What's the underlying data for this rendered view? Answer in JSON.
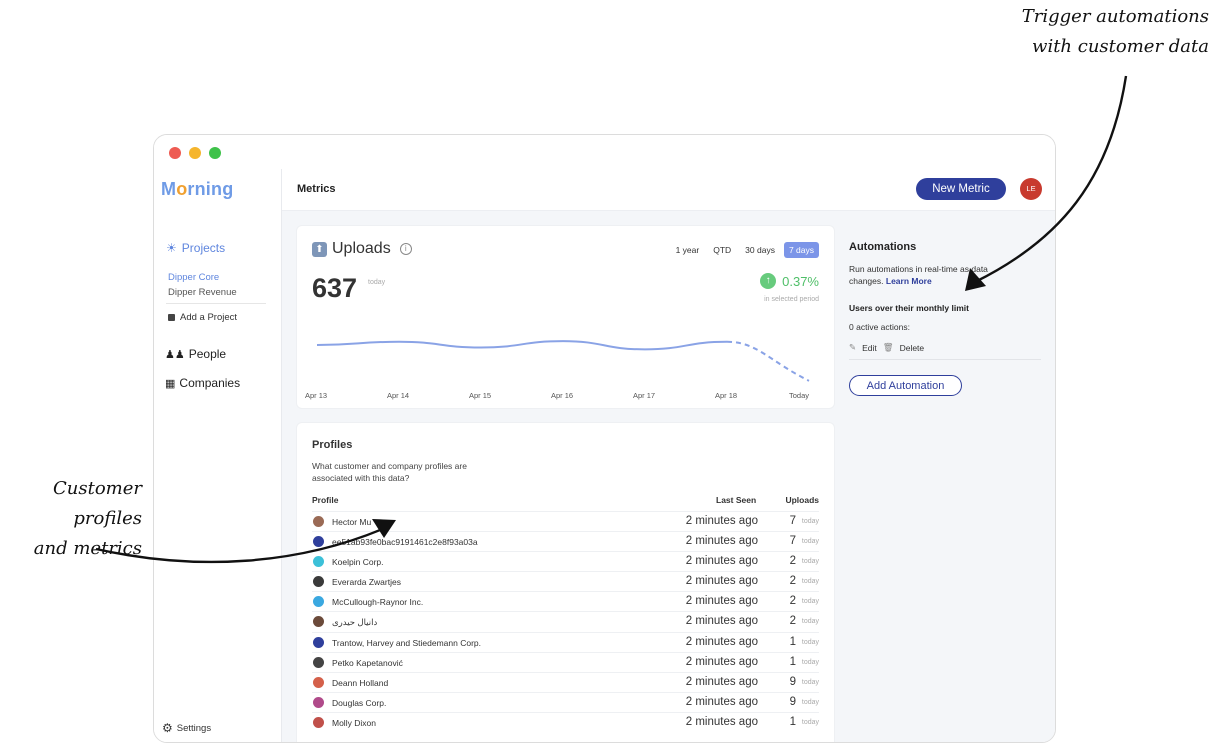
{
  "annotations": {
    "right": [
      "Trigger automations",
      "with customer data"
    ],
    "left": [
      "Customer profiles",
      "and metrics"
    ]
  },
  "app": {
    "logo": "Morning",
    "page_title": "Metrics",
    "new_metric_label": "New Metric",
    "avatar_initials": "LE"
  },
  "sidebar": {
    "projects_label": "Projects",
    "projects": [
      "Dipper Core",
      "Dipper Revenue"
    ],
    "add_project_label": "Add a Project",
    "people_label": "People",
    "companies_label": "Companies",
    "settings_label": "Settings"
  },
  "uploads": {
    "title": "Uploads",
    "ranges": [
      "1 year",
      "QTD",
      "30 days",
      "7 days"
    ],
    "active_range": "7 days",
    "value": "637",
    "value_sub": "today",
    "change": "0.37%",
    "change_sub": "in selected period"
  },
  "chart_data": {
    "type": "line",
    "x": [
      "Apr 13",
      "Apr 14",
      "Apr 15",
      "Apr 16",
      "Apr 17",
      "Apr 18",
      "Today"
    ],
    "series": [
      {
        "values": [
          0.62,
          0.67,
          0.58,
          0.68,
          0.55,
          0.67,
          0.05
        ],
        "projected_from_index": 5
      }
    ],
    "ylim": [
      0,
      1
    ],
    "grid": false,
    "colors": {
      "line": "#8aa3e6"
    }
  },
  "profiles": {
    "title": "Profiles",
    "description": "What customer and company profiles are associated with this data?",
    "columns": {
      "profile": "Profile",
      "last_seen": "Last Seen",
      "uploads": "Uploads"
    },
    "rows": [
      {
        "name": "Hector Mu",
        "last_seen": "2 minutes ago",
        "uploads": "7",
        "period": "today",
        "color": "#9a6a55"
      },
      {
        "name": "ee51ab93fe0bac9191461c2e8f93a03a",
        "last_seen": "2 minutes ago",
        "uploads": "7",
        "period": "today",
        "color": "#2f3f9c"
      },
      {
        "name": "Koelpin Corp.",
        "last_seen": "2 minutes ago",
        "uploads": "2",
        "period": "today",
        "color": "#3cc0d8"
      },
      {
        "name": "Everarda Zwartjes",
        "last_seen": "2 minutes ago",
        "uploads": "2",
        "period": "today",
        "color": "#3a3a3a"
      },
      {
        "name": "McCullough-Raynor Inc.",
        "last_seen": "2 minutes ago",
        "uploads": "2",
        "period": "today",
        "color": "#3aa8e0"
      },
      {
        "name": "دانیال حیدری",
        "last_seen": "2 minutes ago",
        "uploads": "2",
        "period": "today",
        "color": "#6b4a3a"
      },
      {
        "name": "Trantow, Harvey and Stiedemann Corp.",
        "last_seen": "2 minutes ago",
        "uploads": "1",
        "period": "today",
        "color": "#2f3f9c"
      },
      {
        "name": "Petko Kapetanović",
        "last_seen": "2 minutes ago",
        "uploads": "1",
        "period": "today",
        "color": "#444444"
      },
      {
        "name": "Deann Holland",
        "last_seen": "2 minutes ago",
        "uploads": "9",
        "period": "today",
        "color": "#d4604a"
      },
      {
        "name": "Douglas Corp.",
        "last_seen": "2 minutes ago",
        "uploads": "9",
        "period": "today",
        "color": "#b04a8a"
      },
      {
        "name": "Molly Dixon",
        "last_seen": "2 minutes ago",
        "uploads": "1",
        "period": "today",
        "color": "#c0504a"
      }
    ]
  },
  "automations": {
    "title": "Automations",
    "description": "Run automations in real-time as data changes.",
    "learn_more": "Learn More",
    "rule_title": "Users over their monthly limit",
    "active_actions": "0 active actions:",
    "edit_label": "Edit",
    "delete_label": "Delete",
    "add_label": "Add Automation"
  }
}
